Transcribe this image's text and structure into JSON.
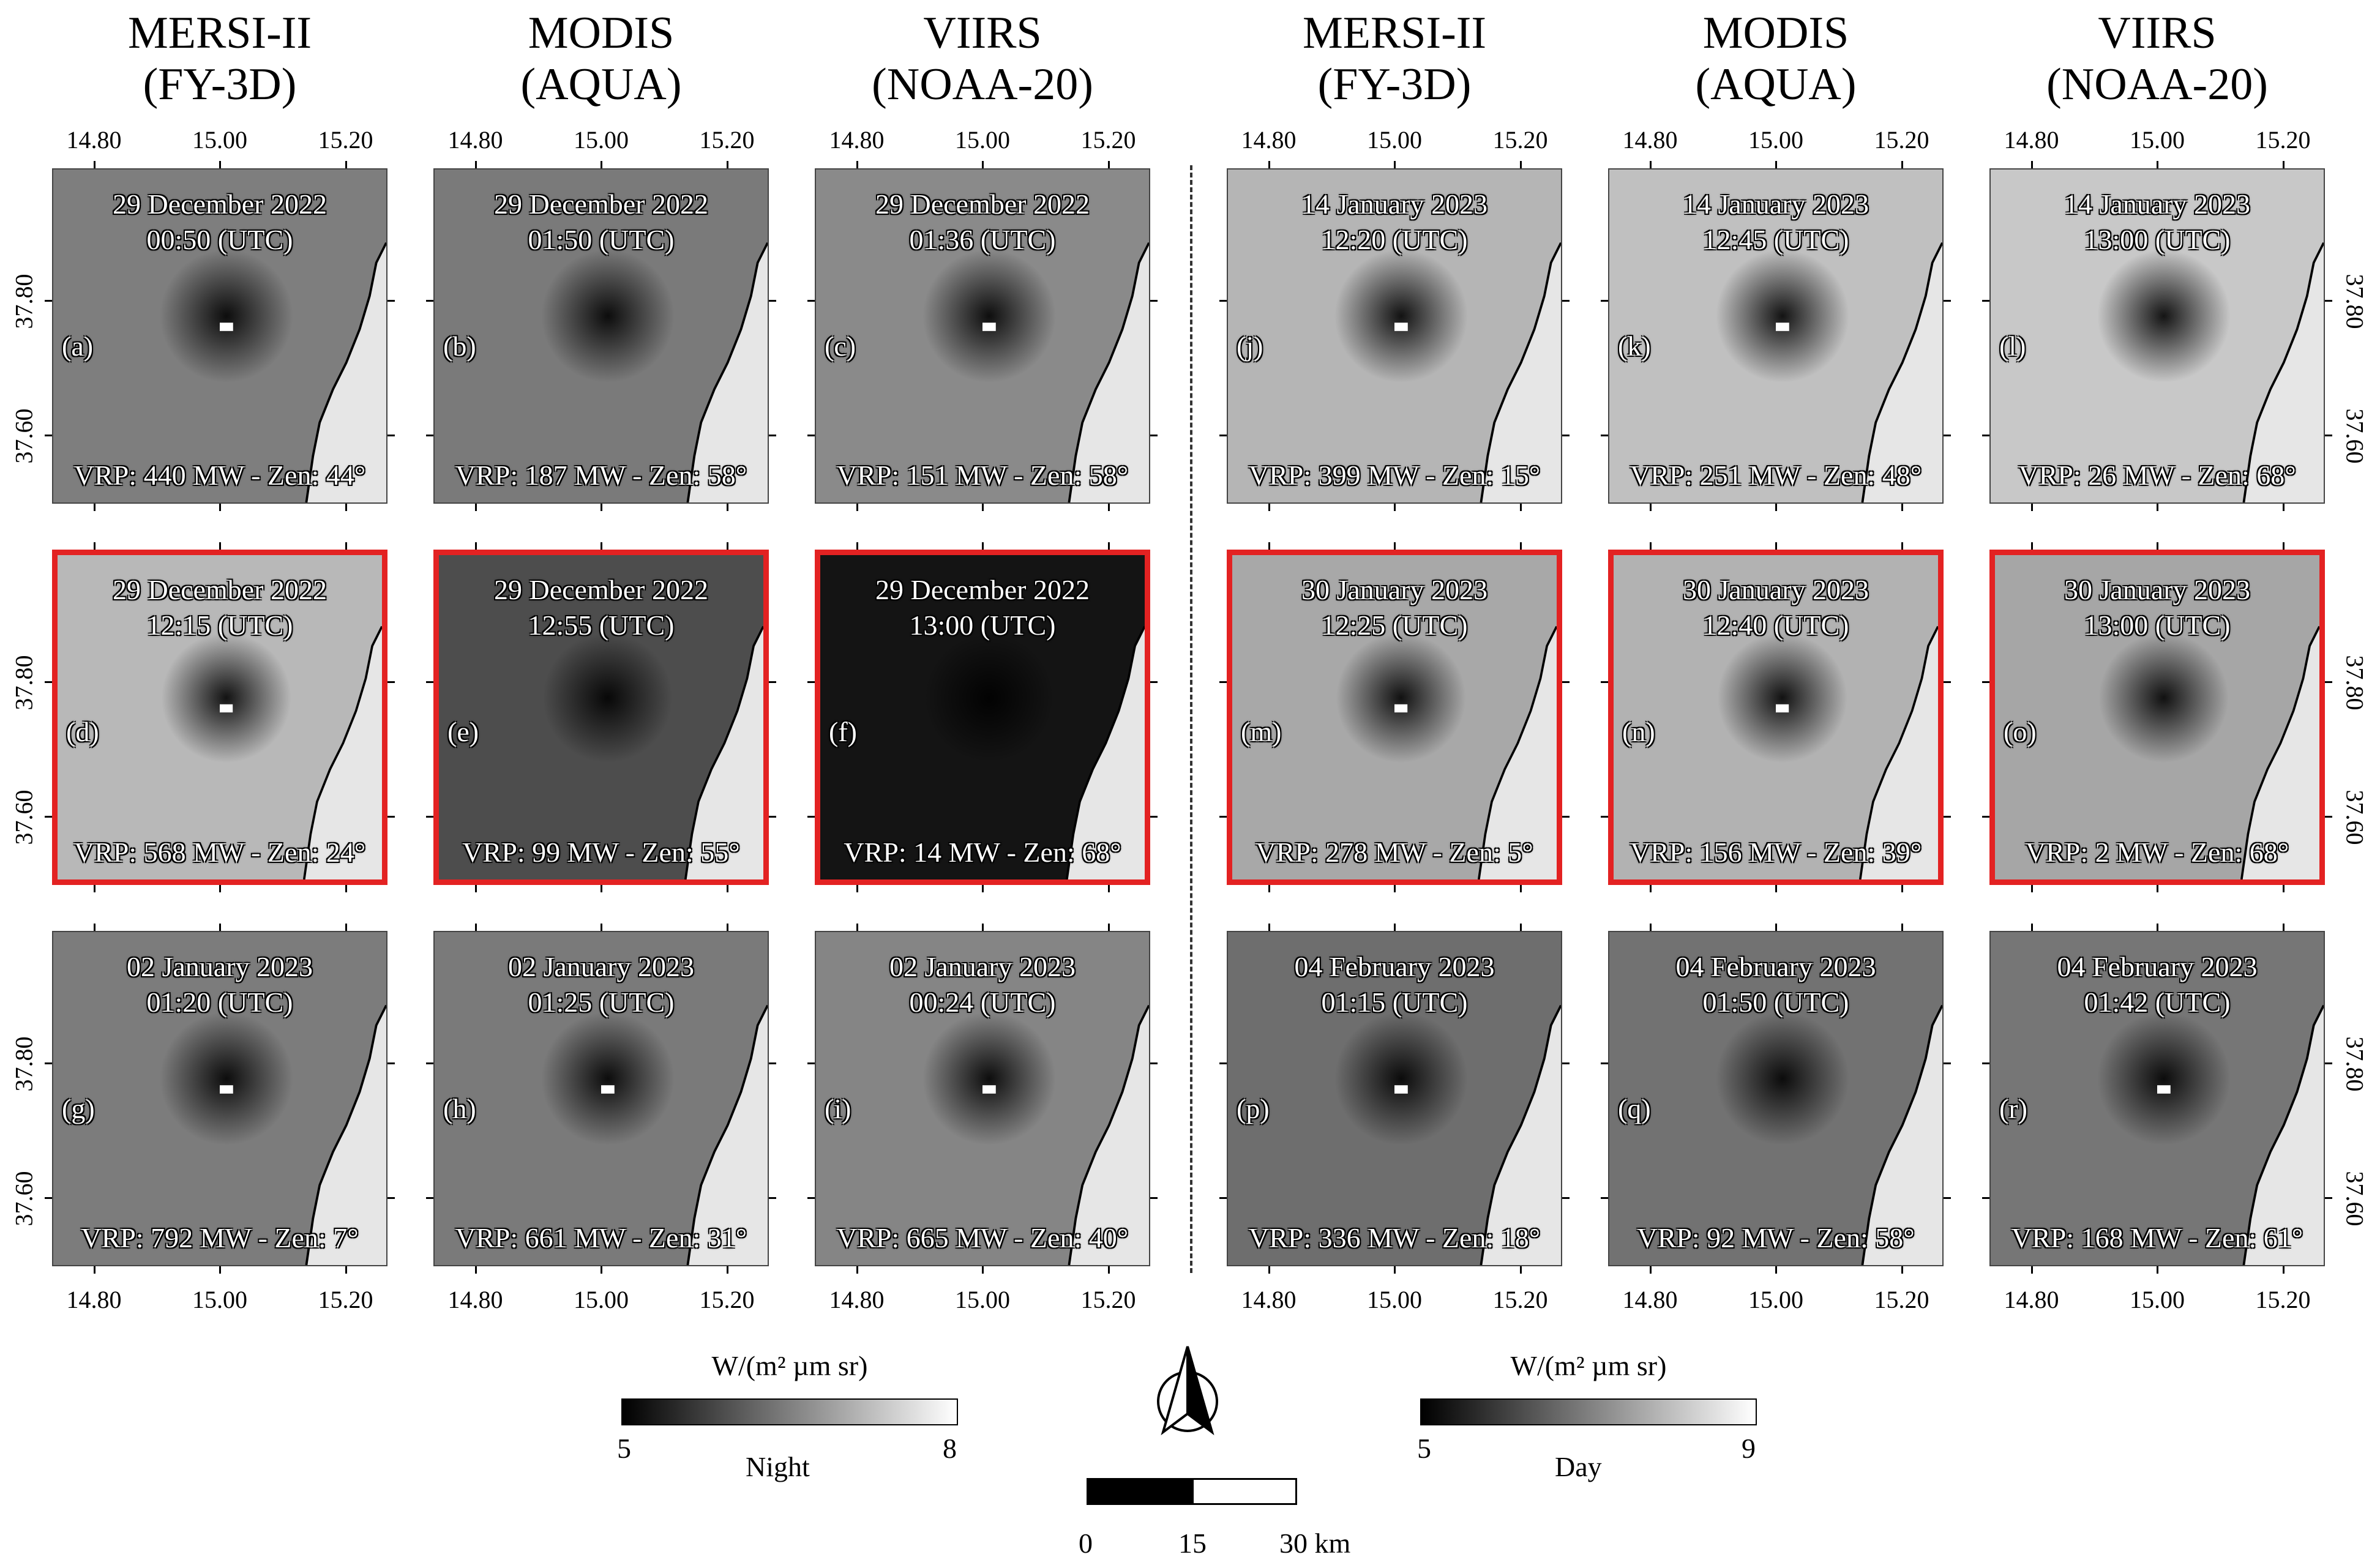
{
  "columns": [
    {
      "sensor": "MERSI-II",
      "platform": "(FY-3D)"
    },
    {
      "sensor": "MODIS",
      "platform": "(AQUA)"
    },
    {
      "sensor": "VIIRS",
      "platform": "(NOAA-20)"
    },
    {
      "sensor": "MERSI-II",
      "platform": "(FY-3D)"
    },
    {
      "sensor": "MODIS",
      "platform": "(AQUA)"
    },
    {
      "sensor": "VIIRS",
      "platform": "(NOAA-20)"
    }
  ],
  "lon_ticks": [
    "14.80",
    "15.00",
    "15.20"
  ],
  "lat_ticks": [
    "37.80",
    "37.60"
  ],
  "panels": [
    {
      "label": "(a)",
      "date": "29 December 2022",
      "time": "00:50 (UTC)",
      "vrp": "VRP: 440 MW - Zen: 44°",
      "highlight": false,
      "tone": "#7e7e7e",
      "hot": true
    },
    {
      "label": "(b)",
      "date": "29 December 2022",
      "time": "01:50 (UTC)",
      "vrp": "VRP: 187 MW - Zen: 58°",
      "highlight": false,
      "tone": "#7a7a7a",
      "hot": false
    },
    {
      "label": "(c)",
      "date": "29 December 2022",
      "time": "01:36 (UTC)",
      "vrp": "VRP: 151 MW - Zen: 58°",
      "highlight": false,
      "tone": "#8a8a8a",
      "hot": true
    },
    {
      "label": "(j)",
      "date": "14 January 2023",
      "time": "12:20 (UTC)",
      "vrp": "VRP: 399 MW - Zen: 15°",
      "highlight": false,
      "tone": "#b5b5b5",
      "hot": true
    },
    {
      "label": "(k)",
      "date": "14 January 2023",
      "time": "12:45 (UTC)",
      "vrp": "VRP: 251 MW - Zen: 48°",
      "highlight": false,
      "tone": "#c0c0c0",
      "hot": true
    },
    {
      "label": "(l)",
      "date": "14 January 2023",
      "time": "13:00 (UTC)",
      "vrp": "VRP: 26 MW - Zen: 68°",
      "highlight": false,
      "tone": "#c8c8c8",
      "hot": false
    },
    {
      "label": "(d)",
      "date": "29 December 2022",
      "time": "12:15 (UTC)",
      "vrp": "VRP: 568 MW - Zen: 24°",
      "highlight": true,
      "tone": "#b8b8b8",
      "hot": true
    },
    {
      "label": "(e)",
      "date": "29 December 2022",
      "time": "12:55 (UTC)",
      "vrp": "VRP: 99 MW - Zen: 55°",
      "highlight": true,
      "tone": "#4d4d4d",
      "hot": false
    },
    {
      "label": "(f)",
      "date": "29 December 2022",
      "time": "13:00 (UTC)",
      "vrp": "VRP: 14 MW - Zen: 68°",
      "highlight": true,
      "tone": "#141414",
      "hot": false
    },
    {
      "label": "(m)",
      "date": "30 January 2023",
      "time": "12:25 (UTC)",
      "vrp": "VRP: 278 MW - Zen: 5°",
      "highlight": true,
      "tone": "#a8a8a8",
      "hot": true
    },
    {
      "label": "(n)",
      "date": "30 January 2023",
      "time": "12:40 (UTC)",
      "vrp": "VRP: 156 MW - Zen: 39°",
      "highlight": true,
      "tone": "#b2b2b2",
      "hot": true
    },
    {
      "label": "(o)",
      "date": "30 January 2023",
      "time": "13:00 (UTC)",
      "vrp": "VRP: 2 MW - Zen: 68°",
      "highlight": true,
      "tone": "#a6a6a6",
      "hot": false
    },
    {
      "label": "(g)",
      "date": "02 January 2023",
      "time": "01:20 (UTC)",
      "vrp": "VRP: 792 MW - Zen: 7°",
      "highlight": false,
      "tone": "#7c7c7c",
      "hot": true
    },
    {
      "label": "(h)",
      "date": "02 January 2023",
      "time": "01:25 (UTC)",
      "vrp": "VRP: 661 MW - Zen: 31°",
      "highlight": false,
      "tone": "#7a7a7a",
      "hot": true
    },
    {
      "label": "(i)",
      "date": "02 January 2023",
      "time": "00:24 (UTC)",
      "vrp": "VRP: 665 MW - Zen: 40°",
      "highlight": false,
      "tone": "#858585",
      "hot": true
    },
    {
      "label": "(p)",
      "date": "04 February 2023",
      "time": "01:15 (UTC)",
      "vrp": "VRP: 336 MW - Zen: 18°",
      "highlight": false,
      "tone": "#6e6e6e",
      "hot": true
    },
    {
      "label": "(q)",
      "date": "04 February 2023",
      "time": "01:50 (UTC)",
      "vrp": "VRP: 92 MW - Zen: 58°",
      "highlight": false,
      "tone": "#727272",
      "hot": false
    },
    {
      "label": "(r)",
      "date": "04 February 2023",
      "time": "01:42 (UTC)",
      "vrp": "VRP: 168 MW - Zen: 61°",
      "highlight": false,
      "tone": "#767676",
      "hot": true
    }
  ],
  "legend": {
    "night": {
      "unit": "W/(m² µm sr)",
      "min": "5",
      "max": "8",
      "name": "Night"
    },
    "day": {
      "unit": "W/(m² µm sr)",
      "min": "5",
      "max": "9",
      "name": "Day"
    },
    "scale": {
      "l0": "0",
      "l1": "15",
      "l2": "30 km"
    }
  },
  "colors": {
    "highlight_border": "#e32222",
    "sea": "#e6e6e6"
  }
}
